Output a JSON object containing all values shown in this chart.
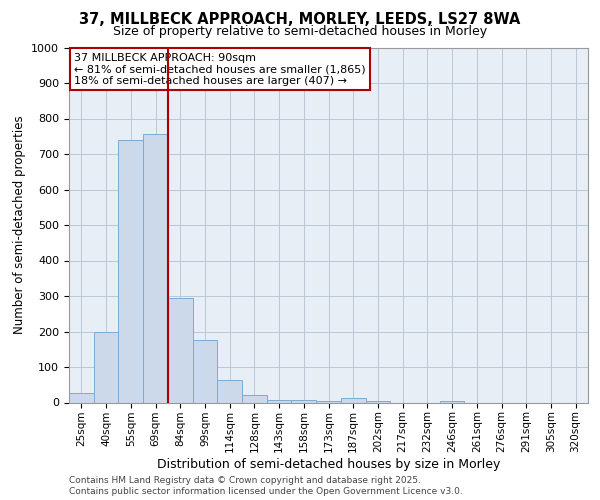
{
  "title1": "37, MILLBECK APPROACH, MORLEY, LEEDS, LS27 8WA",
  "title2": "Size of property relative to semi-detached houses in Morley",
  "xlabel": "Distribution of semi-detached houses by size in Morley",
  "ylabel": "Number of semi-detached properties",
  "categories": [
    "25sqm",
    "40sqm",
    "55sqm",
    "69sqm",
    "84sqm",
    "99sqm",
    "114sqm",
    "128sqm",
    "143sqm",
    "158sqm",
    "173sqm",
    "187sqm",
    "202sqm",
    "217sqm",
    "232sqm",
    "246sqm",
    "261sqm",
    "276sqm",
    "291sqm",
    "305sqm",
    "320sqm"
  ],
  "values": [
    28,
    200,
    740,
    755,
    295,
    175,
    63,
    20,
    8,
    8,
    5,
    12,
    3,
    0,
    0,
    5,
    0,
    0,
    0,
    0,
    0
  ],
  "bar_color": "#ccd9ea",
  "bar_edge_color": "#7aadd4",
  "annotation_title": "37 MILLBECK APPROACH: 90sqm",
  "annotation_line1": "← 81% of semi-detached houses are smaller (1,865)",
  "annotation_line2": "18% of semi-detached houses are larger (407) →",
  "vline_color": "#aa0000",
  "annotation_box_color": "#aa0000",
  "vline_x": 3.5,
  "ylim": [
    0,
    1000
  ],
  "footnote1": "Contains HM Land Registry data © Crown copyright and database right 2025.",
  "footnote2": "Contains public sector information licensed under the Open Government Licence v3.0.",
  "plot_bg_color": "#e8eef5",
  "grid_color": "#b8c8d8"
}
